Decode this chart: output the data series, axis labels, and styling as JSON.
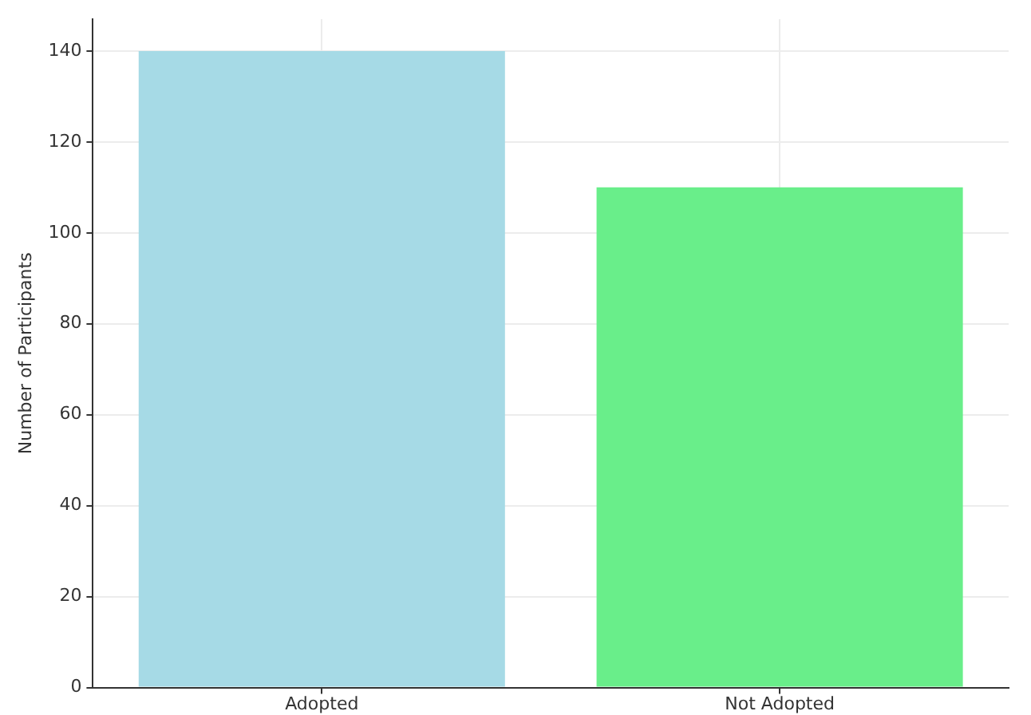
{
  "chart_data": {
    "type": "bar",
    "ylabel": "Number of Participants",
    "categories": [
      "Adopted",
      "Not Adopted"
    ],
    "values": [
      140,
      110
    ],
    "colors": [
      "#a6dae6",
      "#69ee8a"
    ],
    "ylim": [
      0,
      147
    ],
    "yticks": [
      0,
      20,
      40,
      60,
      80,
      100,
      120,
      140
    ],
    "grid": true,
    "legend": false
  }
}
